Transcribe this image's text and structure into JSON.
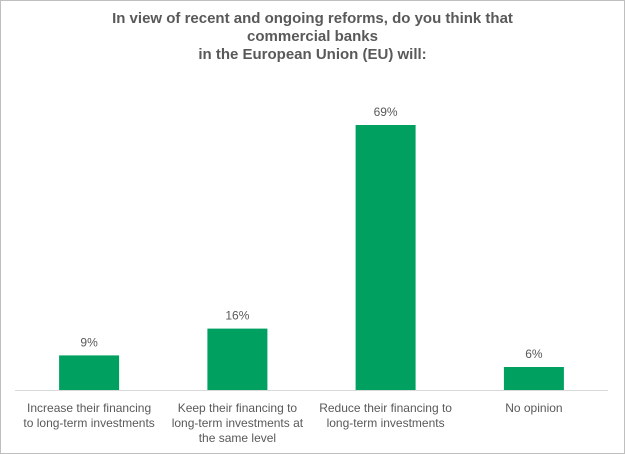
{
  "chart_data": {
    "type": "bar",
    "title_lines": [
      "In view of recent and ongoing reforms, do you think that",
      "commercial banks",
      "in the European Union (EU) will:"
    ],
    "categories": [
      [
        "Increase their financing",
        "to long-term investments"
      ],
      [
        "Keep their financing to",
        "long-term investments at",
        "the same level"
      ],
      [
        "Reduce their financing to",
        "long-term investments"
      ],
      [
        "No opinion"
      ]
    ],
    "values": [
      9,
      16,
      69,
      6
    ],
    "data_labels": [
      "9%",
      "16%",
      "69%",
      "6%"
    ],
    "unit": "%",
    "ylim": [
      0,
      69
    ],
    "grid": false,
    "legend": "none",
    "bar_color": "#00a160"
  }
}
